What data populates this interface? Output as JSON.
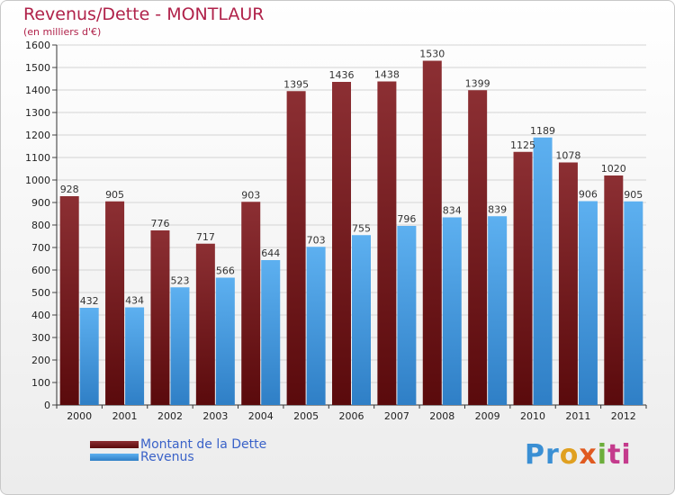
{
  "header": {
    "title": "Revenus/Dette - MONTLAUR",
    "subtitle": "(en milliers d'€)"
  },
  "logo": {
    "p1": "Pr",
    "p2": "o",
    "p3": "x",
    "p4": "i",
    "p5": "ti"
  },
  "colors": {
    "dette": "#6e1416",
    "dette_light": "#8c2f33",
    "revenus": "#4ea3e8",
    "revenus_dark": "#2f7fc6",
    "title": "#b0224a",
    "legend_text": "#3a62c8"
  },
  "chart_data": {
    "type": "bar",
    "title": "Revenus/Dette - MONTLAUR",
    "ylabel": "(en milliers d'€)",
    "categories": [
      "2000",
      "2001",
      "2002",
      "2003",
      "2004",
      "2005",
      "2006",
      "2007",
      "2008",
      "2009",
      "2010",
      "2011",
      "2012"
    ],
    "series": [
      {
        "name": "Montant de la Dette",
        "values": [
          928,
          905,
          776,
          717,
          903,
          1395,
          1436,
          1438,
          1530,
          1399,
          1125,
          1078,
          1020
        ]
      },
      {
        "name": "Revenus",
        "values": [
          432,
          434,
          523,
          566,
          644,
          703,
          755,
          796,
          834,
          839,
          1189,
          906,
          905
        ]
      }
    ],
    "ylim": [
      0,
      1600
    ],
    "yticks": [
      0,
      100,
      200,
      300,
      400,
      500,
      600,
      700,
      800,
      900,
      1000,
      1100,
      1200,
      1300,
      1400,
      1500,
      1600
    ],
    "grid": true,
    "legend_position": "bottom-left"
  }
}
